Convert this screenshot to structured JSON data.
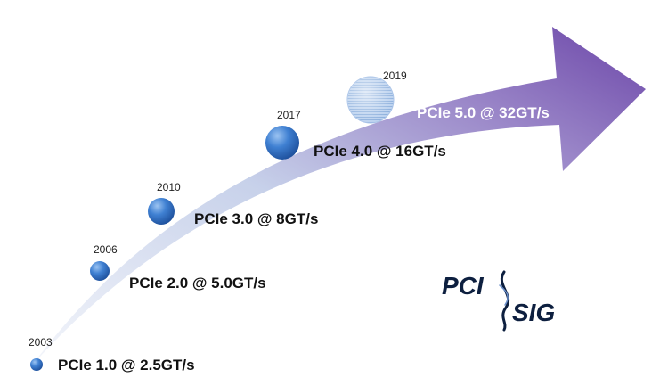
{
  "milestones": [
    {
      "year": "2003",
      "label": "PCIe 1.0 @ 2.5GT/s"
    },
    {
      "year": "2006",
      "label": "PCIe 2.0 @ 5.0GT/s"
    },
    {
      "year": "2010",
      "label": "PCIe 3.0 @ 8GT/s"
    },
    {
      "year": "2017",
      "label": "PCIe 4.0 @ 16GT/s"
    },
    {
      "year": "2019",
      "label": "PCIe 5.0 @ 32GT/s"
    }
  ],
  "logo": {
    "line1": "PCI",
    "line2": "SIG"
  },
  "colors": {
    "arrow_start": "#dfe6f3",
    "arrow_end": "#6b45a8",
    "circle_fill": "#2f6fc4",
    "circle_highlight": "#86b4ea",
    "future_circle": "#9cbde6",
    "logo": "#0d1f3f"
  }
}
